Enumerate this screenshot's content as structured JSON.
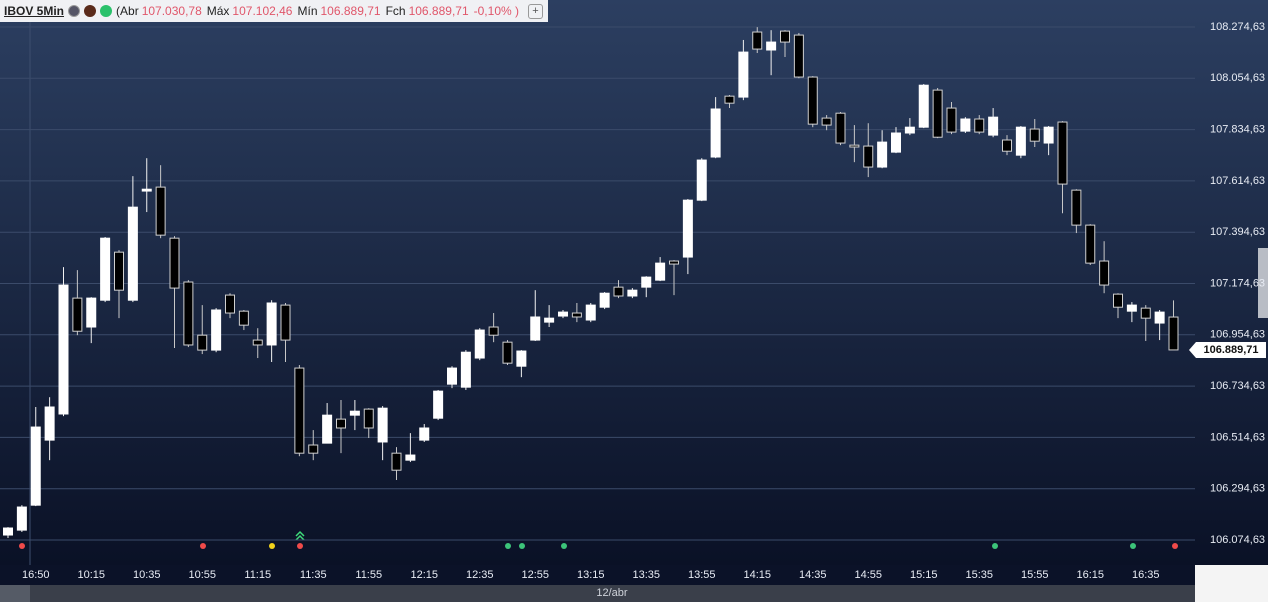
{
  "header": {
    "symbol": "IBOV 5Min",
    "quote": [
      {
        "label": "(Abr",
        "value": "107.030,78"
      },
      {
        "label": "Máx",
        "value": "107.102,46"
      },
      {
        "label": "Mín",
        "value": "106.889,71"
      },
      {
        "label": "Fch",
        "value": "106.889,71"
      }
    ],
    "change": "-0,10% )",
    "add_button": "+"
  },
  "footer": {
    "date": "12/abr"
  },
  "chart_data": {
    "type": "candlestick",
    "categories": [
      null,
      null,
      "16:50",
      null,
      null,
      null,
      "10:15",
      null,
      null,
      null,
      "10:35",
      null,
      null,
      null,
      "10:55",
      null,
      null,
      null,
      "11:15",
      null,
      null,
      null,
      "11:35",
      null,
      null,
      null,
      "11:55",
      null,
      null,
      null,
      "12:15",
      null,
      null,
      null,
      "12:35",
      null,
      null,
      null,
      "12:55",
      null,
      null,
      null,
      "13:15",
      null,
      null,
      null,
      "13:35",
      null,
      null,
      null,
      "13:55",
      null,
      null,
      null,
      "14:15",
      null,
      null,
      null,
      "14:35",
      null,
      null,
      null,
      "14:55",
      null,
      null,
      null,
      "15:15",
      null,
      null,
      null,
      "15:35",
      null,
      null,
      null,
      "15:55",
      null,
      null,
      null,
      "16:15",
      null,
      null,
      null,
      "16:35",
      null,
      null
    ],
    "open": [
      106096,
      106117,
      106224,
      106503,
      106615,
      107112,
      106988,
      107103,
      107309,
      107103,
      107571,
      107588,
      107369,
      107181,
      106953,
      106889,
      107125,
      107056,
      106932,
      106911,
      107082,
      106812,
      106482,
      106490,
      106593,
      106610,
      106636,
      106495,
      106447,
      106417,
      106503,
      106597,
      106743,
      106730,
      106855,
      106988,
      106923,
      106820,
      106932,
      107009,
      107035,
      107048,
      107018,
      107073,
      107159,
      107121,
      107159,
      107189,
      107271,
      107288,
      107532,
      107717,
      107978,
      107974,
      108253,
      108176,
      108257,
      108240,
      108060,
      107884,
      107905,
      107768,
      107764,
      107674,
      107738,
      107820,
      107845,
      108004,
      107927,
      107828,
      107880,
      107811,
      107790,
      107725,
      107837,
      107777,
      107867,
      107575,
      107425,
      107271,
      107129,
      107056,
      107069,
      107005,
      107030.78
    ],
    "high": [
      106130,
      106224,
      106645,
      106687,
      107245,
      107232,
      107116,
      107374,
      107318,
      107635,
      107712,
      107682,
      107378,
      107189,
      107082,
      107069,
      107133,
      107061,
      106983,
      107103,
      107091,
      106825,
      106546,
      106662,
      106675,
      106675,
      106640,
      106649,
      106473,
      106533,
      106572,
      106718,
      106820,
      106889,
      106983,
      107048,
      106932,
      106889,
      107146,
      107082,
      107061,
      107091,
      107091,
      107138,
      107189,
      107155,
      107206,
      107288,
      107275,
      107537,
      107712,
      107974,
      107983,
      108219,
      108274,
      108261,
      108261,
      108249,
      108064,
      107897,
      107910,
      107854,
      107862,
      107832,
      107845,
      107884,
      108030,
      108013,
      107953,
      107888,
      107897,
      107927,
      107811,
      107850,
      107880,
      107850,
      107871,
      107579,
      107429,
      107356,
      107133,
      107095,
      107082,
      107061,
      107102.46
    ],
    "low": [
      106083,
      106109,
      106220,
      106417,
      106606,
      106953,
      106919,
      107095,
      107026,
      107095,
      107481,
      107369,
      106898,
      106902,
      106872,
      106880,
      107026,
      106975,
      106855,
      106838,
      106838,
      106434,
      106417,
      106490,
      106447,
      106546,
      106512,
      106417,
      106332,
      106409,
      106495,
      106589,
      106726,
      106718,
      106846,
      106923,
      106825,
      106773,
      106928,
      106988,
      107026,
      107009,
      107009,
      107065,
      107112,
      107112,
      107116,
      107185,
      107125,
      107215,
      107528,
      107712,
      107927,
      107961,
      108163,
      108068,
      108146,
      108055,
      107845,
      107832,
      107768,
      107695,
      107631,
      107669,
      107734,
      107811,
      107841,
      107798,
      107815,
      107820,
      107815,
      107802,
      107725,
      107712,
      107760,
      107725,
      107476,
      107391,
      107254,
      107133,
      107026,
      107009,
      106928,
      106932,
      106889.71
    ],
    "close": [
      106126,
      106216,
      106559,
      106645,
      107168,
      106970,
      107112,
      107369,
      107146,
      107502,
      107579,
      107382,
      107155,
      106911,
      106889,
      107061,
      107048,
      106996,
      106911,
      107091,
      106932,
      106447,
      106447,
      106610,
      106555,
      106627,
      106555,
      106640,
      106374,
      106439,
      106555,
      106713,
      106812,
      106880,
      106975,
      106953,
      106833,
      106885,
      107031,
      107026,
      107052,
      107031,
      107082,
      107133,
      107121,
      107146,
      107202,
      107262,
      107258,
      107532,
      107704,
      107923,
      107948,
      108167,
      108180,
      108210,
      108210,
      108060,
      107858,
      107854,
      107777,
      107760,
      107674,
      107781,
      107820,
      107845,
      108025,
      107802,
      107824,
      107880,
      107824,
      107888,
      107742,
      107845,
      107785,
      107845,
      107601,
      107425,
      107262,
      107168,
      107073,
      107082,
      107026,
      107052,
      106889.71
    ],
    "up_color": "#ffffff",
    "down_color": "#000000",
    "ylim": [
      105980.3,
      108390.4
    ],
    "yticks": [
      {
        "value": 108274.63,
        "label": "108.274,63"
      },
      {
        "value": 108054.63,
        "label": "108.054,63"
      },
      {
        "value": 107834.63,
        "label": "107.834,63"
      },
      {
        "value": 107614.63,
        "label": "107.614,63"
      },
      {
        "value": 107394.63,
        "label": "107.394,63"
      },
      {
        "value": 107174.63,
        "label": "107.174,63"
      },
      {
        "value": 106954.63,
        "label": "106.954,63"
      },
      {
        "value": 106734.63,
        "label": "106.734,63"
      },
      {
        "value": 106514.63,
        "label": "106.514,63"
      },
      {
        "value": 106294.63,
        "label": "106.294,63"
      },
      {
        "value": 106074.63,
        "label": "106.074,63"
      }
    ],
    "grid": true,
    "last_price": {
      "value": 106889.71,
      "label": "106.889,71"
    }
  }
}
